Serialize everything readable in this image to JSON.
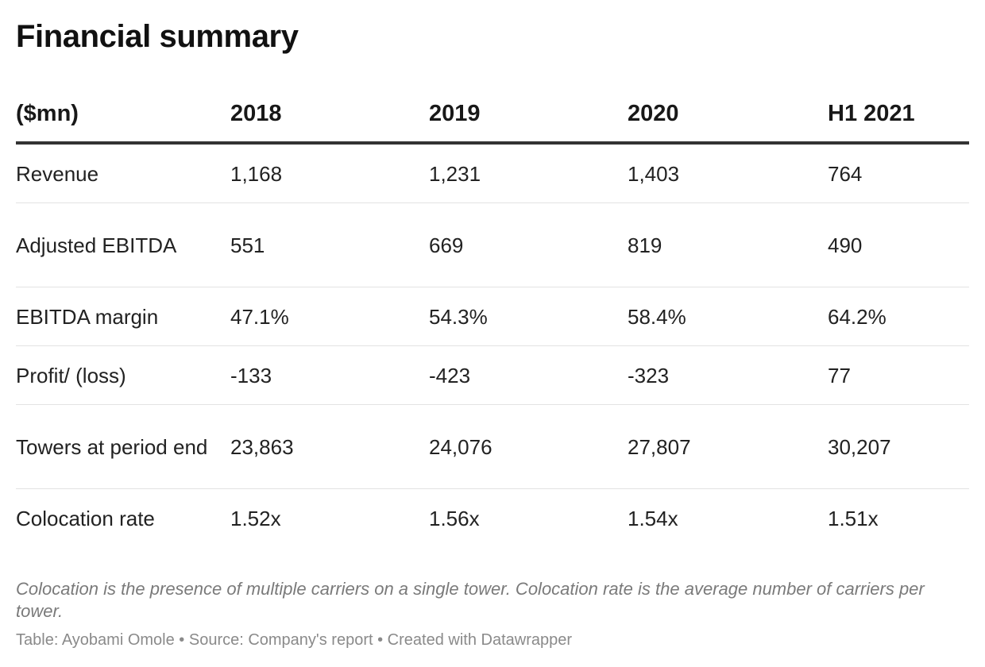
{
  "title": "Financial summary",
  "chart_data": {
    "type": "table",
    "title": "Financial summary",
    "columns": [
      "($mn)",
      "2018",
      "2019",
      "2020",
      "H1 2021"
    ],
    "rows": [
      [
        "Revenue",
        "1,168",
        "1,231",
        "1,403",
        "764"
      ],
      [
        "Adjusted EBITDA",
        "551",
        "669",
        "819",
        "490"
      ],
      [
        "EBITDA margin",
        "47.1%",
        "54.3%",
        "58.4%",
        "64.2%"
      ],
      [
        "Profit/ (loss)",
        "-133",
        "-423",
        "-323",
        "77"
      ],
      [
        "Towers at period end",
        "23,863",
        "24,076",
        "27,807",
        "30,207"
      ],
      [
        "Colocation rate",
        "1.52x",
        "1.56x",
        "1.54x",
        "1.51x"
      ]
    ]
  },
  "notes": "Colocation is the presence of multiple carriers on a single tower. Colocation rate is the average number of carriers per tower.",
  "footer": {
    "credit": "Table: Ayobami Omole • Source: Company's report • Created with Datawrapper"
  },
  "colors": {
    "header_rule": "#333333",
    "row_rule": "#e3e3e3",
    "note_text": "#7a7a7a"
  }
}
